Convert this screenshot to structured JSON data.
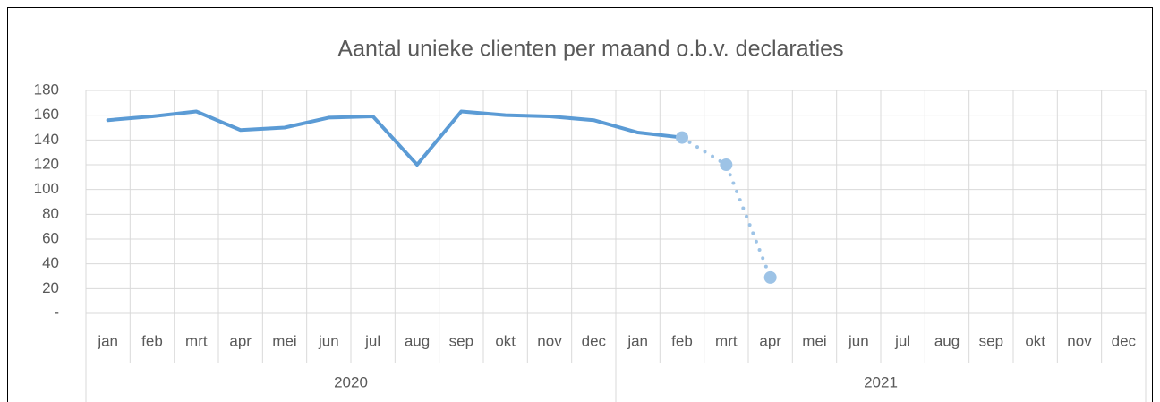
{
  "chart_data": {
    "type": "line",
    "title": "Aantal unieke clienten per maand o.b.v. declaraties",
    "categories": [
      "jan",
      "feb",
      "mrt",
      "apr",
      "mei",
      "jun",
      "jul",
      "aug",
      "sep",
      "okt",
      "nov",
      "dec",
      "jan",
      "feb",
      "mrt",
      "apr",
      "mei",
      "jun",
      "jul",
      "aug",
      "sep",
      "okt",
      "nov",
      "dec"
    ],
    "groups": [
      "2020",
      "2021"
    ],
    "series": [
      {
        "color": "#5b9bd5",
        "style": "solid",
        "markers": false,
        "values": [
          156,
          159,
          163,
          148,
          150,
          158,
          159,
          120,
          163,
          160,
          159,
          156,
          146,
          142,
          null,
          null,
          null,
          null,
          null,
          null,
          null,
          null,
          null,
          null
        ]
      },
      {
        "color": "#9dc3e6",
        "style": "dotted",
        "markers": true,
        "values": [
          null,
          null,
          null,
          null,
          null,
          null,
          null,
          null,
          null,
          null,
          null,
          null,
          null,
          142,
          120,
          29,
          null,
          null,
          null,
          null,
          null,
          null,
          null,
          null
        ]
      }
    ],
    "ylim": [
      0,
      180
    ],
    "yticks": [
      {
        "value": 0,
        "label": "-"
      },
      20,
      40,
      60,
      80,
      100,
      120,
      140,
      160,
      180
    ],
    "grid": true
  }
}
